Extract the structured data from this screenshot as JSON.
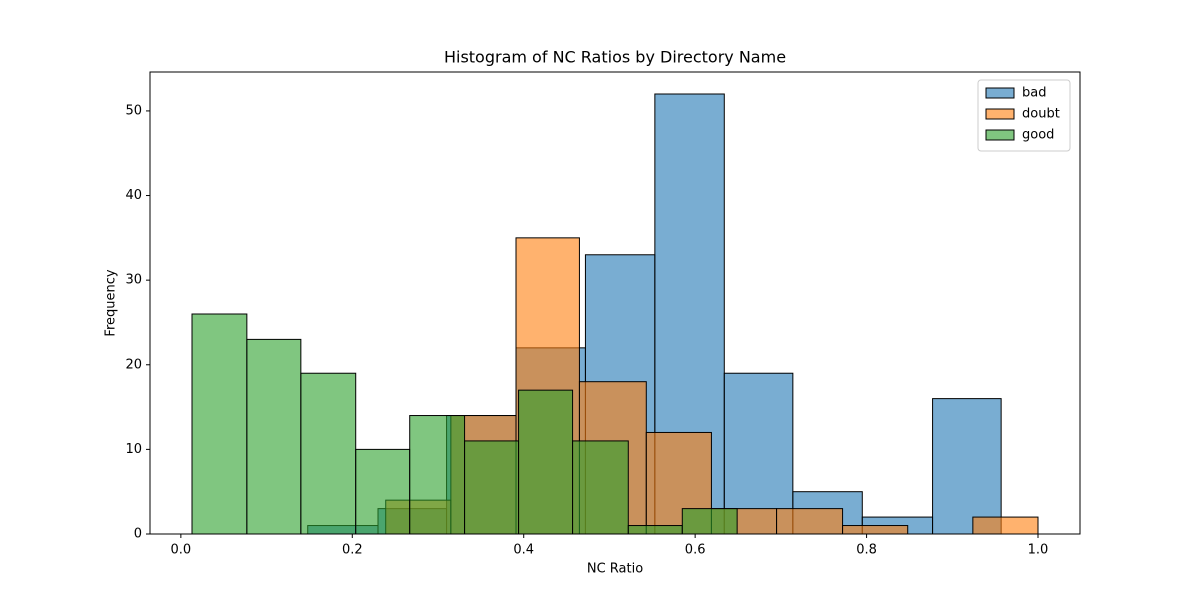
{
  "chart_data": {
    "type": "histogram",
    "title": "Histogram of NC Ratios by Directory Name",
    "x_label": "NC Ratio",
    "y_label": "Frequency",
    "xlim": [
      -0.036,
      1.049
    ],
    "ylim": [
      0,
      54.6
    ],
    "xticks": [
      {
        "value": 0,
        "label": "0.0"
      },
      0.2,
      0.4,
      0.6,
      0.8,
      {
        "value": 1,
        "label": "1.0"
      }
    ],
    "yticks": [
      0,
      10,
      20,
      30,
      40,
      50
    ],
    "legend": "upper right",
    "alpha": 0.6,
    "series": [
      {
        "name": "bad",
        "color": "#1f77b4",
        "bins": [
          0.148,
          0.23,
          0.31,
          0.391,
          0.472,
          0.553,
          0.634,
          0.714,
          0.795,
          0.877,
          0.957
        ],
        "values": [
          1,
          3,
          14,
          22,
          33,
          52,
          19,
          5,
          2,
          16
        ]
      },
      {
        "name": "doubt",
        "color": "#ff7f0e",
        "bins": [
          0.239,
          0.315,
          0.391,
          0.465,
          0.543,
          0.619,
          0.695,
          0.772,
          0.848,
          0.924,
          1.0
        ],
        "values": [
          4,
          14,
          35,
          18,
          12,
          3,
          3,
          1,
          0,
          2
        ]
      },
      {
        "name": "good",
        "color": "#2ca02c",
        "bins": [
          0.013,
          0.077,
          0.14,
          0.204,
          0.267,
          0.331,
          0.394,
          0.457,
          0.522,
          0.585,
          0.649
        ],
        "values": [
          26,
          23,
          19,
          10,
          14,
          11,
          17,
          11,
          1,
          3
        ]
      }
    ]
  }
}
